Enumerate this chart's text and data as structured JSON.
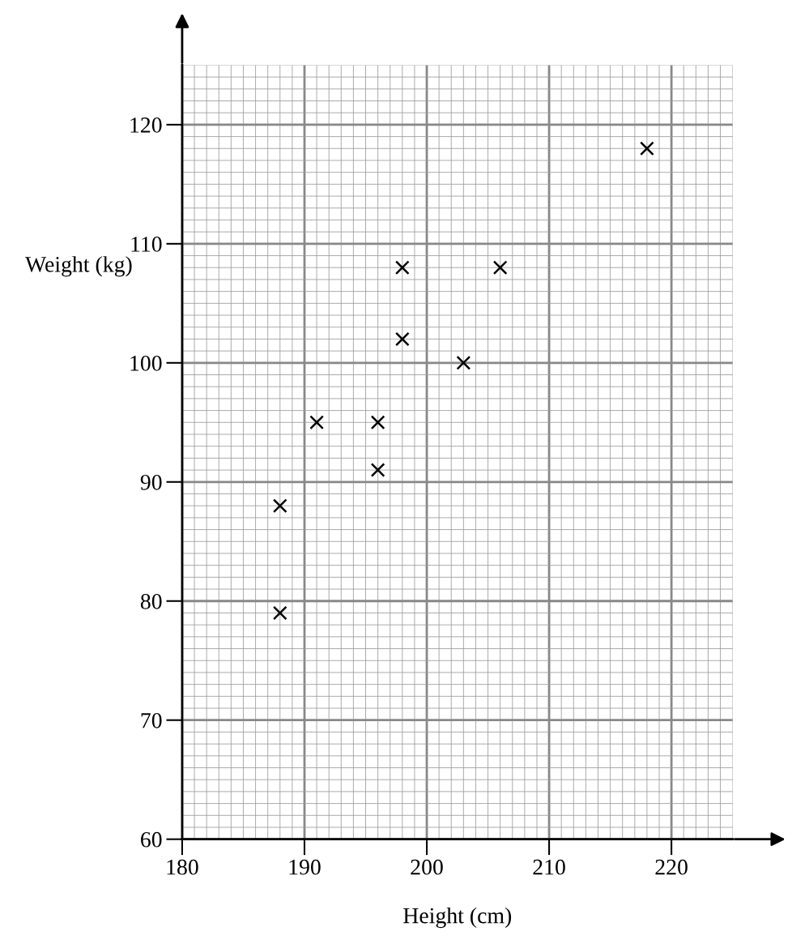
{
  "chart_data": {
    "type": "scatter",
    "xlabel": "Height (cm)",
    "ylabel": "Weight (kg)",
    "x": [
      188,
      188,
      191,
      196,
      196,
      198,
      198,
      203,
      206,
      218
    ],
    "values": [
      79,
      88,
      95,
      95,
      91,
      102,
      108,
      100,
      108,
      118
    ],
    "color": "#000000",
    "marker": "cross",
    "grid": true,
    "xlim": [
      180,
      225
    ],
    "ylim": [
      60,
      125
    ],
    "xticks": [
      180,
      190,
      200,
      210,
      220
    ],
    "yticks": [
      60,
      70,
      80,
      90,
      100,
      110,
      120
    ]
  }
}
